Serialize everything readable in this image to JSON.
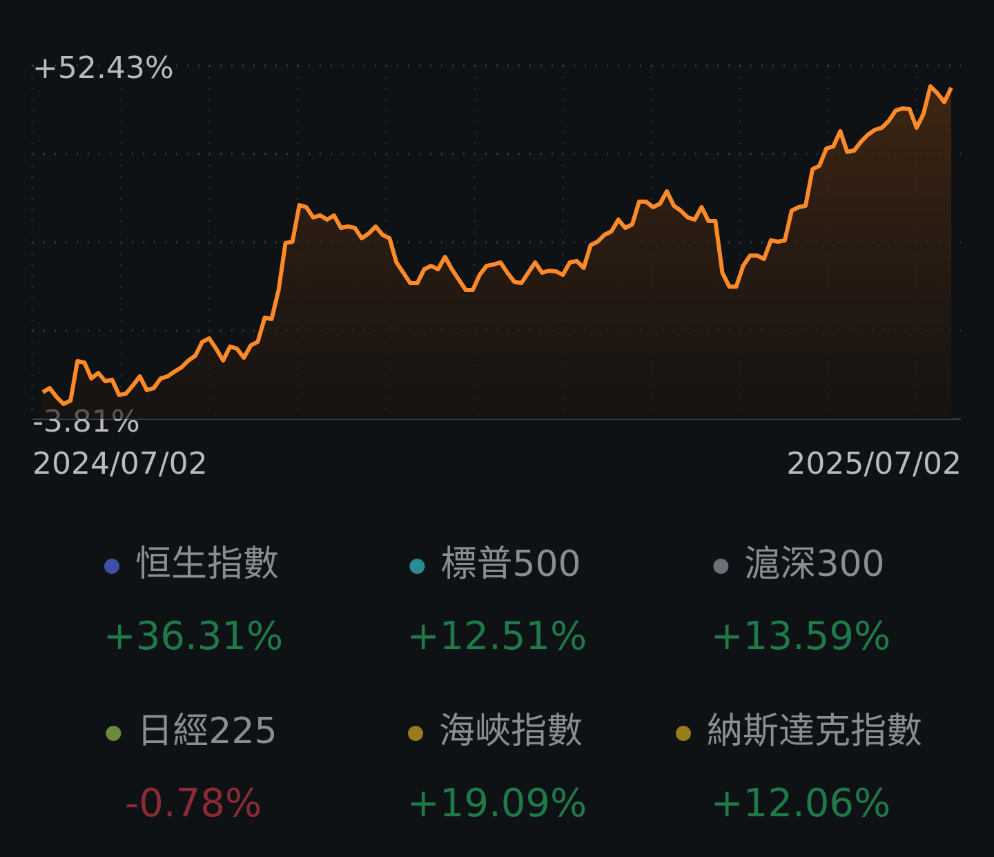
{
  "chart_data": {
    "type": "line",
    "xlim": [
      "2024/07/02",
      "2025/07/02"
    ],
    "ylim": [
      -3.81,
      52.43
    ],
    "yticks": [
      {
        "value": -3.81,
        "label": "-3.81%"
      },
      {
        "value": 52.43,
        "label": "+52.43%"
      }
    ],
    "grid": true,
    "series": [
      {
        "color": "#ff8a2a",
        "values": [
          0.48,
          1.13,
          -0.29,
          -1.39,
          -0.84,
          5.42,
          5.2,
          2.67,
          3.55,
          2.23,
          2.45,
          0.04,
          0.26,
          1.57,
          3.0,
          0.81,
          1.13,
          2.67,
          3.0,
          3.77,
          4.43,
          5.53,
          6.3,
          8.49,
          9.04,
          7.4,
          5.53,
          7.73,
          7.4,
          5.97,
          7.94,
          8.49,
          12.34,
          12.12,
          16.73,
          24.2,
          24.42,
          30.24,
          29.91,
          28.27,
          28.6,
          27.94,
          28.6,
          26.62,
          26.84,
          26.62,
          24.97,
          25.74,
          26.84,
          25.52,
          24.97,
          21.13,
          19.48,
          17.83,
          17.83,
          20.03,
          20.58,
          20.03,
          22.0,
          20.03,
          18.38,
          16.73,
          16.73,
          19.15,
          20.58,
          20.8,
          21.13,
          19.48,
          18.05,
          17.83,
          19.48,
          21.13,
          19.48,
          19.81,
          19.7,
          19.15,
          21.13,
          21.35,
          20.25,
          23.87,
          24.42,
          25.52,
          26.07,
          27.94,
          26.62,
          27.17,
          30.79,
          30.79,
          29.91,
          30.46,
          32.44,
          30.13,
          29.36,
          28.27,
          27.94,
          29.91,
          27.72,
          27.72,
          19.48,
          17.28,
          17.28,
          20.58,
          22.22,
          22.22,
          21.67,
          24.64,
          24.42,
          24.64,
          29.36,
          29.91,
          30.13,
          35.95,
          36.5,
          39.25,
          39.58,
          42.0,
          38.7,
          38.92,
          40.35,
          41.45,
          42.22,
          42.54,
          43.64,
          45.29,
          45.62,
          45.51,
          42.54,
          44.74,
          49.13,
          48.04,
          46.61,
          48.92
        ]
      }
    ],
    "benchmarks": [
      {
        "name": "恒生指數",
        "color": "#3d50a8",
        "change": "+36.31%",
        "change_color": "#1f7a4a"
      },
      {
        "name": "標普500",
        "color": "#2b8b93",
        "change": "+12.51%",
        "change_color": "#1f7a4a"
      },
      {
        "name": "滬深300",
        "color": "#6b6f78",
        "change": "+13.59%",
        "change_color": "#1f7a4a"
      },
      {
        "name": "日經225",
        "color": "#6b8a3c",
        "change": "-0.78%",
        "change_color": "#8c2b35"
      },
      {
        "name": "海峽指數",
        "color": "#9b7b1f",
        "change": "+19.09%",
        "change_color": "#1f7a4a"
      },
      {
        "name": "納斯達克指數",
        "color": "#9b7b1f",
        "change": "+12.06%",
        "change_color": "#1f7a4a"
      }
    ]
  }
}
